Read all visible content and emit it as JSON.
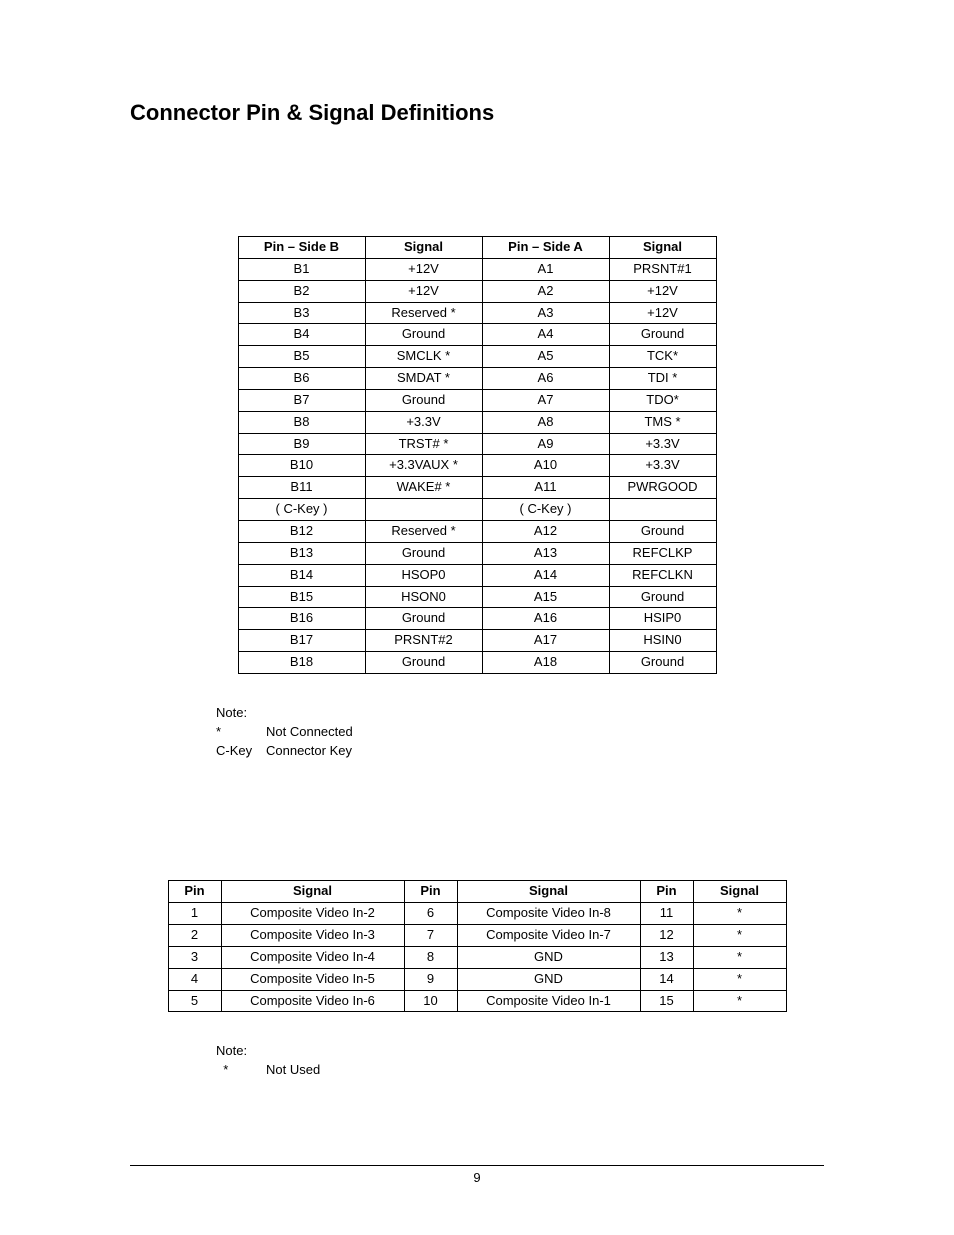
{
  "heading": "Connector Pin & Signal Definitions",
  "table1": {
    "headers": [
      "Pin – Side B",
      "Signal",
      "Pin – Side A",
      "Signal"
    ],
    "rows": [
      [
        "B1",
        "+12V",
        "A1",
        "PRSNT#1"
      ],
      [
        "B2",
        "+12V",
        "A2",
        "+12V"
      ],
      [
        "B3",
        "Reserved *",
        "A3",
        "+12V"
      ],
      [
        "B4",
        "Ground",
        "A4",
        "Ground"
      ],
      [
        "B5",
        "SMCLK *",
        "A5",
        "TCK*"
      ],
      [
        "B6",
        "SMDAT *",
        "A6",
        "TDI *"
      ],
      [
        "B7",
        "Ground",
        "A7",
        "TDO*"
      ],
      [
        "B8",
        "+3.3V",
        "A8",
        "TMS *"
      ],
      [
        "B9",
        "TRST# *",
        "A9",
        "+3.3V"
      ],
      [
        "B10",
        "+3.3VAUX *",
        "A10",
        "+3.3V"
      ],
      [
        "B11",
        "WAKE# *",
        "A11",
        "PWRGOOD"
      ],
      [
        "( C-Key )",
        "",
        "( C-Key )",
        ""
      ],
      [
        "B12",
        "Reserved *",
        "A12",
        "Ground"
      ],
      [
        "B13",
        "Ground",
        "A13",
        "REFCLKP"
      ],
      [
        "B14",
        "HSOP0",
        "A14",
        "REFCLKN"
      ],
      [
        "B15",
        "HSON0",
        "A15",
        "Ground"
      ],
      [
        "B16",
        "Ground",
        "A16",
        "HSIP0"
      ],
      [
        "B17",
        "PRSNT#2",
        "A17",
        "HSIN0"
      ],
      [
        "B18",
        "Ground",
        "A18",
        "Ground"
      ]
    ]
  },
  "note1": {
    "title": "Note:",
    "lines": [
      {
        "key": "*",
        "val": "Not Connected"
      },
      {
        "key": "C-Key",
        "val": "Connector Key"
      }
    ]
  },
  "table2": {
    "headers": [
      "Pin",
      "Signal",
      "Pin",
      "Signal",
      "Pin",
      "Signal"
    ],
    "rows": [
      [
        "1",
        "Composite Video In-2",
        "6",
        "Composite Video In-8",
        "11",
        "*"
      ],
      [
        "2",
        "Composite Video In-3",
        "7",
        "Composite Video In-7",
        "12",
        "*"
      ],
      [
        "3",
        "Composite Video In-4",
        "8",
        "GND",
        "13",
        "*"
      ],
      [
        "4",
        "Composite Video In-5",
        "9",
        "GND",
        "14",
        "*"
      ],
      [
        "5",
        "Composite Video In-6",
        "10",
        "Composite Video In-1",
        "15",
        "*"
      ]
    ]
  },
  "note2": {
    "title": "Note:",
    "lines": [
      {
        "key": "  *",
        "val": "Not Used"
      }
    ]
  },
  "pageNumber": "9"
}
